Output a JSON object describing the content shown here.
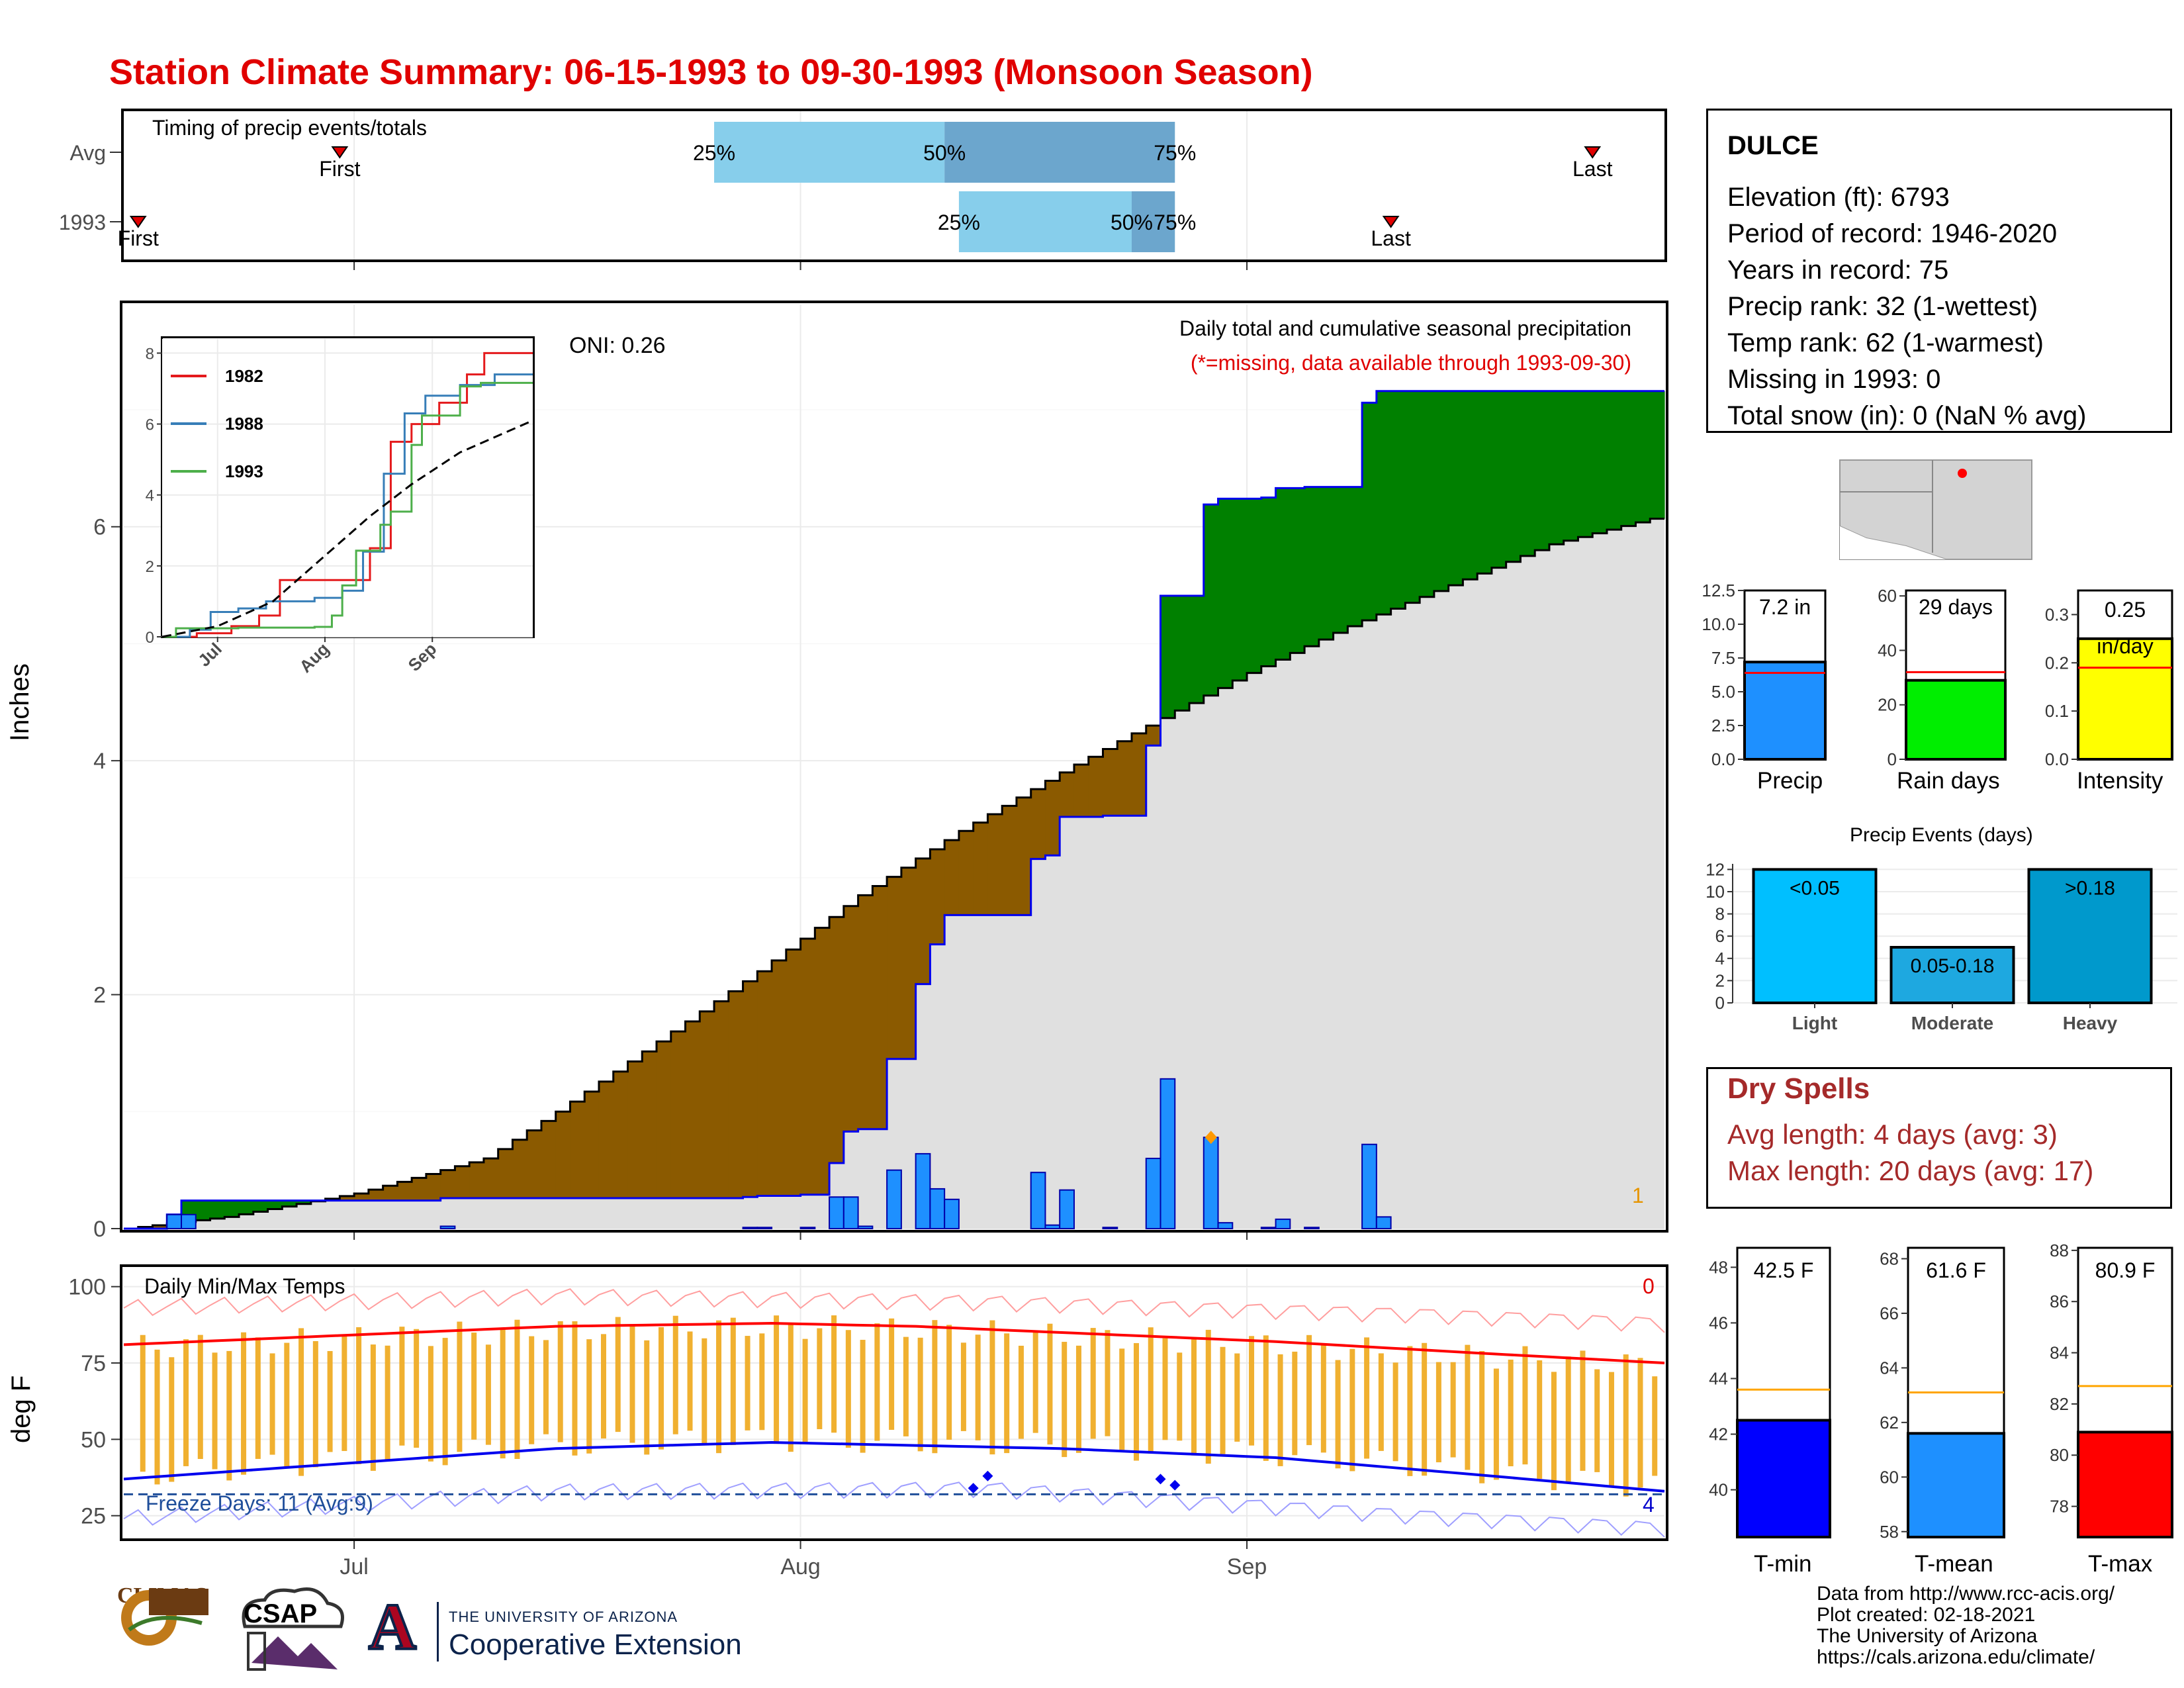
{
  "title": "Station Climate Summary: 06-15-1993 to 09-30-1993 (Monsoon Season)",
  "timing": {
    "label": "Timing of precip events/totals",
    "rows": [
      {
        "name": "Avg",
        "first": "2000-06-30",
        "last": "2000-09-25",
        "p25": "2000-07-26",
        "p50": "2000-08-11",
        "p75": "2000-08-27",
        "first_label": "First",
        "last_label": "Last"
      },
      {
        "name": "1993",
        "first": "2000-06-16",
        "last": "2000-09-11",
        "p25": "2000-08-12",
        "p50": "2000-08-24",
        "p75": "2000-08-27",
        "first_label": "First",
        "last_label": "Last"
      }
    ],
    "pct_labels": [
      "25%",
      "50%",
      "75%"
    ]
  },
  "precip": {
    "ylabel": "Inches",
    "yticks": [
      "0",
      "2",
      "4",
      "6"
    ],
    "oni": "ONI: 0.26",
    "subtitle": "Daily total and cumulative seasonal precipitation",
    "missing_note": "(*=missing, data available through 1993-09-30)",
    "count_label": "1",
    "colors": {
      "above": "#008000",
      "below": "#8b5a00",
      "normal": "#e0e0e0",
      "bars": "#1e90ff",
      "cum_line": "#0000ee"
    }
  },
  "inset": {
    "yticks": [
      "0",
      "2",
      "4",
      "6",
      "8"
    ],
    "xticks": [
      "Jul",
      "Aug",
      "Sep"
    ],
    "legend": [
      {
        "name": "1982",
        "color": "#e41a1c"
      },
      {
        "name": "1988",
        "color": "#377eb8"
      },
      {
        "name": "1993",
        "color": "#4daf4a"
      }
    ]
  },
  "temps": {
    "ylabel": "deg F",
    "yticks": [
      "25",
      "50",
      "75",
      "100"
    ],
    "title": "Daily Min/Max Temps",
    "freeze": "Freeze Days: 11 (Avg:9)",
    "count_hot": "0",
    "count_cold": "4",
    "xticks": [
      "Jul",
      "Aug",
      "Sep"
    ]
  },
  "station": {
    "name": "DULCE",
    "lines": [
      "Elevation (ft): 6793",
      "Period of record: 1946-2020",
      "Years in record: 75",
      "Precip rank: 32 (1-wettest)",
      "Temp rank: 62 (1-warmest)",
      "Missing in 1993: 0",
      "Total snow (in): 0 (NaN % avg)"
    ]
  },
  "mini_bars": [
    {
      "label": "Precip",
      "value_text": "7.2 in",
      "value": 7.2,
      "avg": 6.4,
      "ymax": 12.5,
      "yticks": [
        "0.0",
        "2.5",
        "5.0",
        "7.5",
        "10.0",
        "12.5"
      ],
      "tickvals": [
        0,
        2.5,
        5,
        7.5,
        10,
        12.5
      ],
      "color": "#1e90ff"
    },
    {
      "label": "Rain days",
      "value_text": "29 days",
      "value": 29,
      "avg": 32,
      "ymax": 62,
      "yticks": [
        "0",
        "20",
        "40",
        "60"
      ],
      "tickvals": [
        0,
        20,
        40,
        60
      ],
      "color": "#00ee00"
    },
    {
      "label": "Intensity",
      "value_text": "0.25 in/day",
      "value": 0.25,
      "avg": 0.19,
      "ymax": 0.35,
      "yticks": [
        "0.0",
        "0.1",
        "0.2",
        "0.3"
      ],
      "tickvals": [
        0,
        0.1,
        0.2,
        0.3
      ],
      "color": "#ffff00"
    }
  ],
  "events": {
    "title": "Precip Events (days)",
    "yticks": [
      "0",
      "2",
      "4",
      "6",
      "8",
      "10",
      "12"
    ],
    "bars": [
      {
        "label": "Light",
        "text": "<0.05",
        "value": 12,
        "color": "#00bfff"
      },
      {
        "label": "Moderate",
        "text": "0.05-0.18",
        "value": 5,
        "color": "#1ea8e0"
      },
      {
        "label": "Heavy",
        "text": ">0.18",
        "value": 12,
        "color": "#0099cc"
      }
    ]
  },
  "dry": {
    "title": "Dry Spells",
    "avg": "Avg length: 4 days (avg: 3)",
    "max": "Max length: 20 days (avg: 17)"
  },
  "temp_bars": [
    {
      "label": "T-min",
      "value_text": "42.5 F",
      "value": 42.5,
      "avg": 43.6,
      "ymin": 38.3,
      "ymax": 48.7,
      "yticks": [
        "40",
        "42",
        "44",
        "46",
        "48"
      ],
      "tickvals": [
        40,
        42,
        44,
        46,
        48
      ],
      "color": "#0000ff"
    },
    {
      "label": "T-mean",
      "value_text": "61.6 F",
      "value": 61.6,
      "avg": 63.1,
      "ymin": 57.8,
      "ymax": 68.4,
      "yticks": [
        "58",
        "60",
        "62",
        "64",
        "66",
        "68"
      ],
      "tickvals": [
        58,
        60,
        62,
        64,
        66,
        68
      ],
      "color": "#1e90ff"
    },
    {
      "label": "T-max",
      "value_text": "80.9 F",
      "value": 80.9,
      "avg": 82.7,
      "ymin": 76.8,
      "ymax": 88.1,
      "yticks": [
        "78",
        "80",
        "82",
        "84",
        "86",
        "88"
      ],
      "tickvals": [
        78,
        80,
        82,
        84,
        86,
        88
      ],
      "color": "#ff0000"
    }
  ],
  "credits": [
    "Data from http://www.rcc-acis.org/",
    "Plot created: 02-18-2021",
    "The University of Arizona",
    "https://cals.arizona.edu/climate/"
  ],
  "logos": {
    "climas": "CLIMAS",
    "csap": "CSAP",
    "ua_line1": "THE UNIVERSITY OF ARIZONA",
    "ua_line2": "Cooperative Extension",
    "ua_letter": "A"
  },
  "chart_data": {
    "type": "area",
    "title": "Daily total and cumulative seasonal precipitation",
    "ylabel": "Inches",
    "ylim": [
      0,
      7.9
    ],
    "x_range": [
      "1993-06-15",
      "1993-09-30"
    ],
    "daily_precip": [
      {
        "date": "1993-06-18",
        "value": 0.12
      },
      {
        "date": "1993-06-19",
        "value": 0.12
      },
      {
        "date": "1993-07-07",
        "value": 0.02
      },
      {
        "date": "1993-07-28",
        "value": 0.01
      },
      {
        "date": "1993-07-29",
        "value": 0.01
      },
      {
        "date": "1993-08-01",
        "value": 0.01
      },
      {
        "date": "1993-08-03",
        "value": 0.27
      },
      {
        "date": "1993-08-04",
        "value": 0.27
      },
      {
        "date": "1993-08-05",
        "value": 0.02
      },
      {
        "date": "1993-08-07",
        "value": 0.5
      },
      {
        "date": "1993-08-09",
        "value": 0.64
      },
      {
        "date": "1993-08-10",
        "value": 0.34
      },
      {
        "date": "1993-08-11",
        "value": 0.25
      },
      {
        "date": "1993-08-17",
        "value": 0.48
      },
      {
        "date": "1993-08-18",
        "value": 0.03
      },
      {
        "date": "1993-08-19",
        "value": 0.33
      },
      {
        "date": "1993-08-22",
        "value": 0.01
      },
      {
        "date": "1993-08-25",
        "value": 0.6
      },
      {
        "date": "1993-08-26",
        "value": 1.28
      },
      {
        "date": "1993-08-29",
        "value": 0.78
      },
      {
        "date": "1993-08-30",
        "value": 0.05
      },
      {
        "date": "1993-09-02",
        "value": 0.01
      },
      {
        "date": "1993-09-03",
        "value": 0.08
      },
      {
        "date": "1993-09-05",
        "value": 0.01
      },
      {
        "date": "1993-09-09",
        "value": 0.72
      },
      {
        "date": "1993-09-10",
        "value": 0.1
      }
    ],
    "cumulative_1993": [
      {
        "date": "1993-06-15",
        "value": 0
      },
      {
        "date": "1993-06-18",
        "value": 0.12
      },
      {
        "date": "1993-06-19",
        "value": 0.24
      },
      {
        "date": "1993-07-07",
        "value": 0.26
      },
      {
        "date": "1993-07-28",
        "value": 0.27
      },
      {
        "date": "1993-07-29",
        "value": 0.28
      },
      {
        "date": "1993-08-01",
        "value": 0.29
      },
      {
        "date": "1993-08-03",
        "value": 0.56
      },
      {
        "date": "1993-08-04",
        "value": 0.83
      },
      {
        "date": "1993-08-05",
        "value": 0.85
      },
      {
        "date": "1993-08-07",
        "value": 1.45
      },
      {
        "date": "1993-08-09",
        "value": 2.09
      },
      {
        "date": "1993-08-10",
        "value": 2.43
      },
      {
        "date": "1993-08-11",
        "value": 2.68
      },
      {
        "date": "1993-08-17",
        "value": 3.16
      },
      {
        "date": "1993-08-18",
        "value": 3.19
      },
      {
        "date": "1993-08-19",
        "value": 3.52
      },
      {
        "date": "1993-08-22",
        "value": 3.53
      },
      {
        "date": "1993-08-25",
        "value": 4.13
      },
      {
        "date": "1993-08-26",
        "value": 5.41
      },
      {
        "date": "1993-08-29",
        "value": 6.19
      },
      {
        "date": "1993-08-30",
        "value": 6.24
      },
      {
        "date": "1993-09-02",
        "value": 6.25
      },
      {
        "date": "1993-09-03",
        "value": 6.33
      },
      {
        "date": "1993-09-05",
        "value": 6.34
      },
      {
        "date": "1993-09-09",
        "value": 7.06
      },
      {
        "date": "1993-09-10",
        "value": 7.16
      },
      {
        "date": "1993-09-30",
        "value": 7.16
      }
    ],
    "cumulative_avg": [
      {
        "date": "1993-06-15",
        "value": 0
      },
      {
        "date": "1993-06-22",
        "value": 0.1
      },
      {
        "date": "1993-07-01",
        "value": 0.3
      },
      {
        "date": "1993-07-10",
        "value": 0.6
      },
      {
        "date": "1993-07-15",
        "value": 1.0
      },
      {
        "date": "1993-07-22",
        "value": 1.6
      },
      {
        "date": "1993-07-29",
        "value": 2.2
      },
      {
        "date": "1993-08-05",
        "value": 2.85
      },
      {
        "date": "1993-08-12",
        "value": 3.4
      },
      {
        "date": "1993-08-19",
        "value": 3.9
      },
      {
        "date": "1993-08-25",
        "value": 4.3
      },
      {
        "date": "1993-09-01",
        "value": 4.75
      },
      {
        "date": "1993-09-08",
        "value": 5.15
      },
      {
        "date": "1993-09-15",
        "value": 5.5
      },
      {
        "date": "1993-09-22",
        "value": 5.85
      },
      {
        "date": "1993-09-30",
        "value": 6.1
      }
    ],
    "inset_series": [
      {
        "name": "1982",
        "points": [
          [
            0,
            0
          ],
          [
            10,
            0.1
          ],
          [
            20,
            0.3
          ],
          [
            28,
            0.6
          ],
          [
            34,
            1.6
          ],
          [
            48,
            1.6
          ],
          [
            56,
            1.6
          ],
          [
            60,
            2.5
          ],
          [
            66,
            5.5
          ],
          [
            72,
            6.0
          ],
          [
            80,
            6.6
          ],
          [
            88,
            7.4
          ],
          [
            93,
            8.0
          ],
          [
            107,
            8.0
          ]
        ]
      },
      {
        "name": "1988",
        "points": [
          [
            0,
            0
          ],
          [
            8,
            0.2
          ],
          [
            14,
            0.7
          ],
          [
            22,
            0.8
          ],
          [
            30,
            1.0
          ],
          [
            44,
            1.1
          ],
          [
            52,
            1.3
          ],
          [
            58,
            2.4
          ],
          [
            64,
            4.6
          ],
          [
            70,
            6.3
          ],
          [
            76,
            6.8
          ],
          [
            86,
            7.1
          ],
          [
            96,
            7.4
          ],
          [
            107,
            7.4
          ]
        ]
      },
      {
        "name": "1993",
        "points": [
          [
            0,
            0
          ],
          [
            4,
            0.24
          ],
          [
            22,
            0.26
          ],
          [
            44,
            0.28
          ],
          [
            49,
            0.6
          ],
          [
            52,
            1.45
          ],
          [
            56,
            2.43
          ],
          [
            63,
            3.16
          ],
          [
            66,
            3.53
          ],
          [
            72,
            5.41
          ],
          [
            75,
            6.24
          ],
          [
            86,
            7.06
          ],
          [
            92,
            7.16
          ],
          [
            107,
            7.16
          ]
        ]
      },
      {
        "name": "Average",
        "points": [
          [
            0,
            0
          ],
          [
            16,
            0.3
          ],
          [
            32,
            1.0
          ],
          [
            46,
            2.2
          ],
          [
            60,
            3.4
          ],
          [
            72,
            4.3
          ],
          [
            86,
            5.2
          ],
          [
            100,
            5.8
          ],
          [
            107,
            6.1
          ]
        ]
      }
    ],
    "temp_avg_max": [
      [
        0,
        81
      ],
      [
        15,
        84
      ],
      [
        30,
        87
      ],
      [
        45,
        88
      ],
      [
        55,
        87
      ],
      [
        65,
        85
      ],
      [
        80,
        82
      ],
      [
        95,
        78
      ],
      [
        107,
        75
      ]
    ],
    "temp_avg_min": [
      [
        0,
        37
      ],
      [
        15,
        42
      ],
      [
        30,
        47
      ],
      [
        45,
        49
      ],
      [
        55,
        48
      ],
      [
        65,
        47
      ],
      [
        80,
        44
      ],
      [
        95,
        38
      ],
      [
        107,
        33
      ]
    ],
    "temp_record_max": [
      [
        0,
        93
      ],
      [
        30,
        97
      ],
      [
        60,
        95
      ],
      [
        90,
        91
      ],
      [
        107,
        88
      ]
    ],
    "temp_record_min": [
      [
        0,
        24
      ],
      [
        30,
        33
      ],
      [
        60,
        34
      ],
      [
        90,
        25
      ],
      [
        107,
        21
      ]
    ]
  }
}
